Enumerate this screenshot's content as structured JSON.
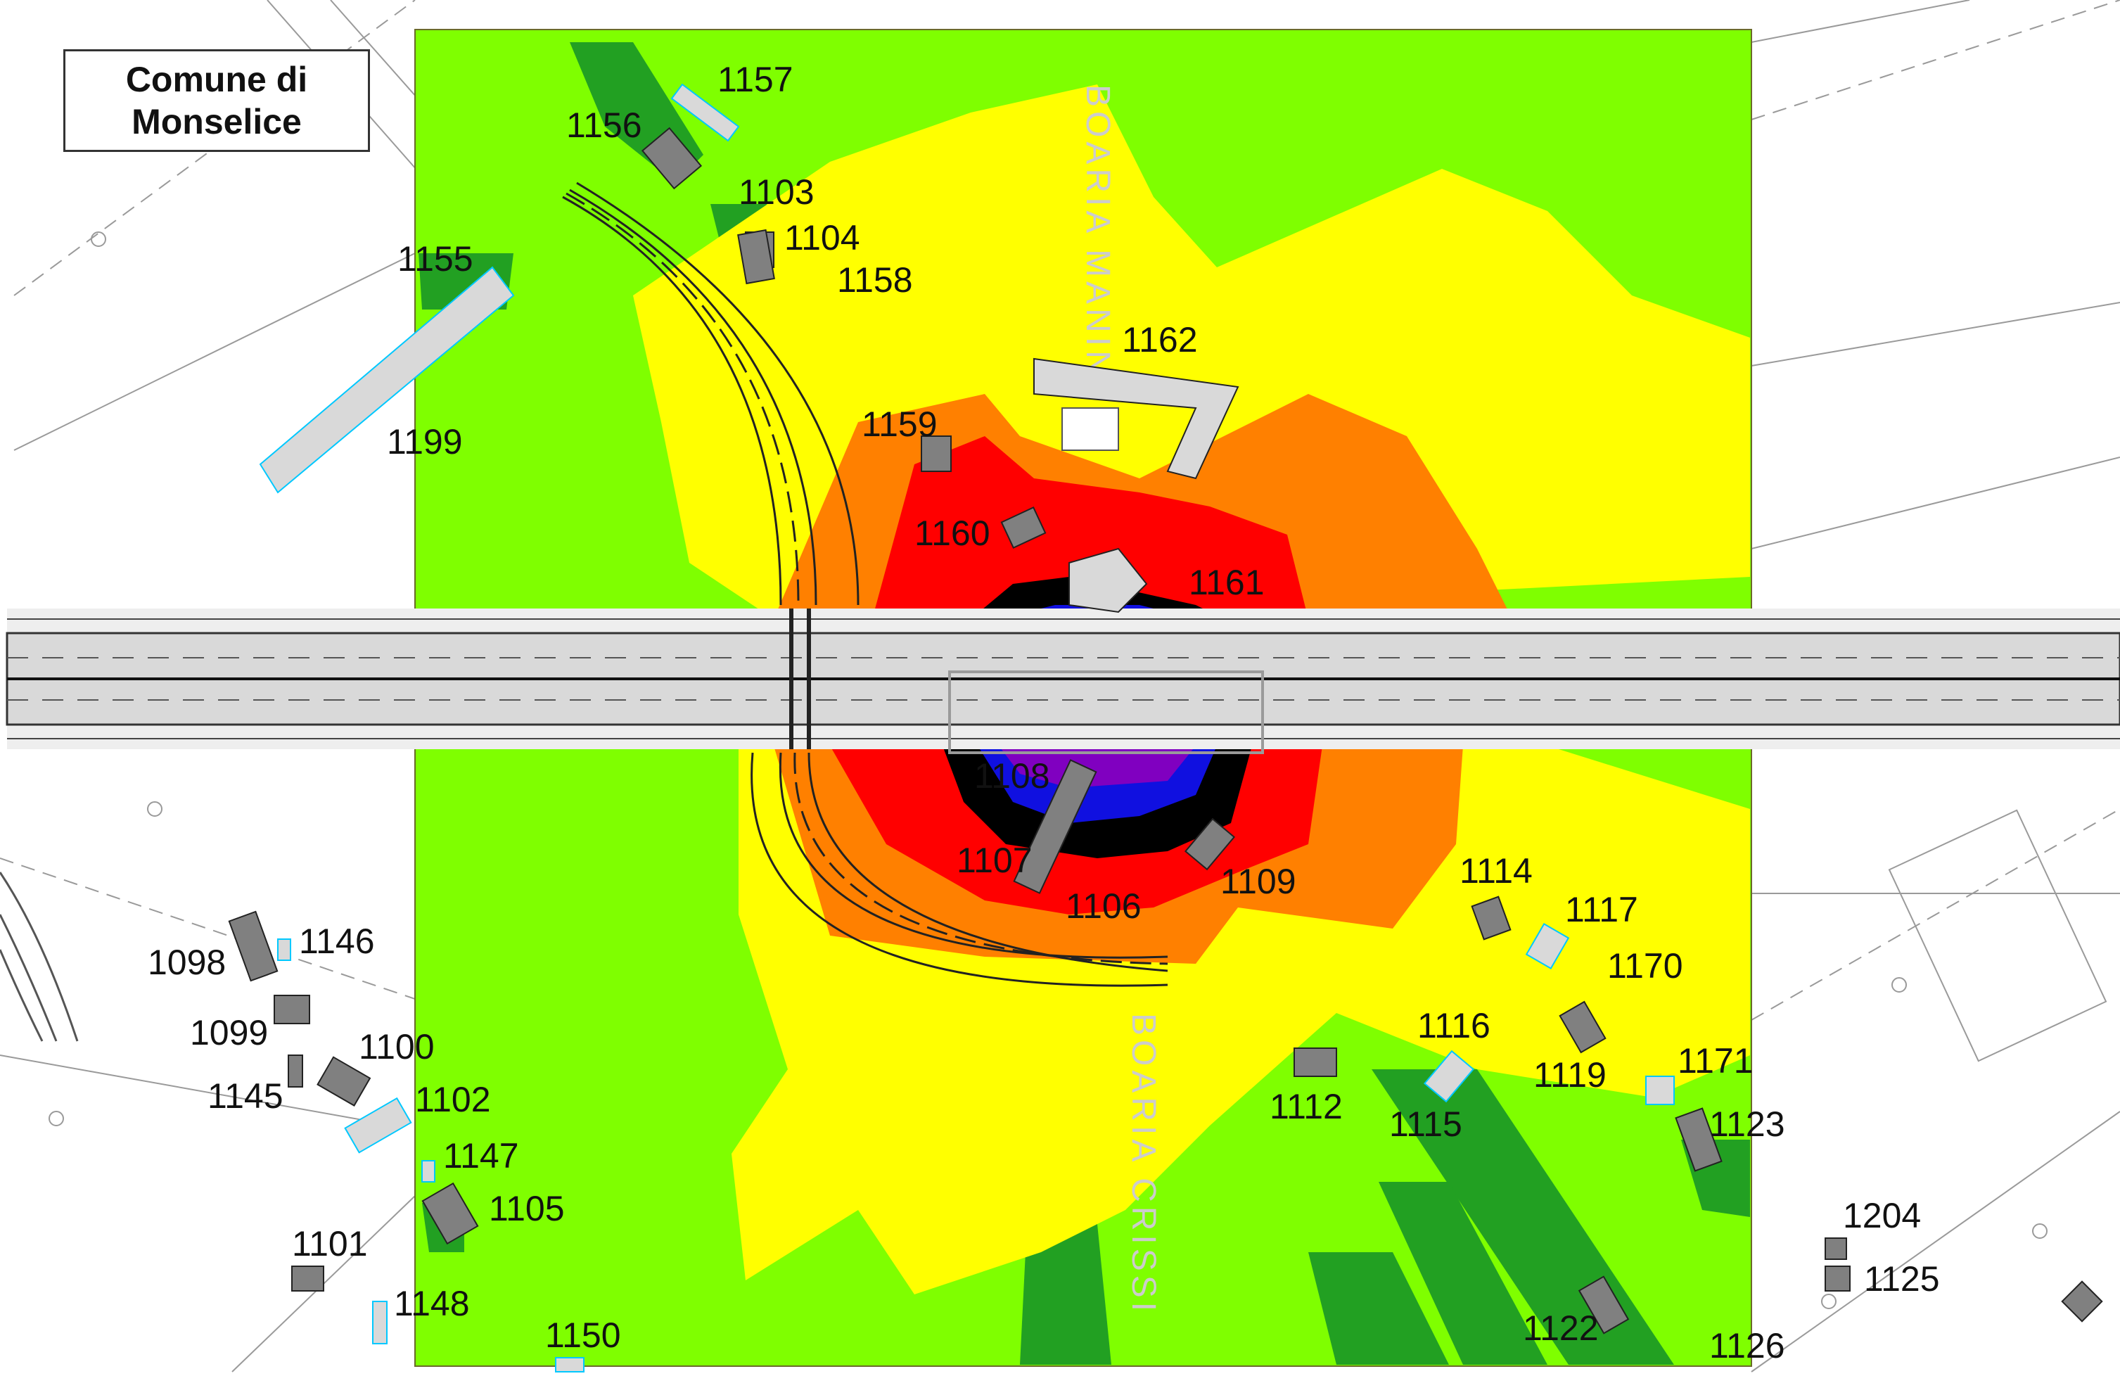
{
  "title": {
    "line1": "Comune di",
    "line2": "Monselice"
  },
  "streets": [
    {
      "id": "street-north",
      "label": "BOARIA MANIN"
    },
    {
      "id": "street-south",
      "label": "BOARIA CRISSI"
    }
  ],
  "receivers": [
    "1157",
    "1156",
    "1103",
    "1104",
    "1155",
    "1158",
    "1162",
    "1199",
    "1159",
    "1160",
    "1161",
    "1108",
    "1107",
    "1106",
    "1109",
    "1114",
    "1117",
    "1170",
    "1116",
    "1119",
    "1171",
    "1112",
    "1115",
    "1123",
    "1146",
    "1098",
    "1099",
    "1100",
    "1145",
    "1102",
    "1147",
    "1105",
    "1101",
    "1148",
    "1150",
    "1204",
    "1125",
    "1122",
    "1126"
  ],
  "colors": {
    "green_light": "#7fff00",
    "green_dark": "#22a022",
    "yellow": "#ffff00",
    "orange": "#ff8000",
    "red": "#ff0000",
    "black": "#000000",
    "blue": "#1010e0",
    "purple": "#8000c0",
    "road": "#d9d9d9",
    "building_grey": "#808080",
    "building_light": "#d9d9d9",
    "building_outline_cyan": "#00c8ff"
  }
}
